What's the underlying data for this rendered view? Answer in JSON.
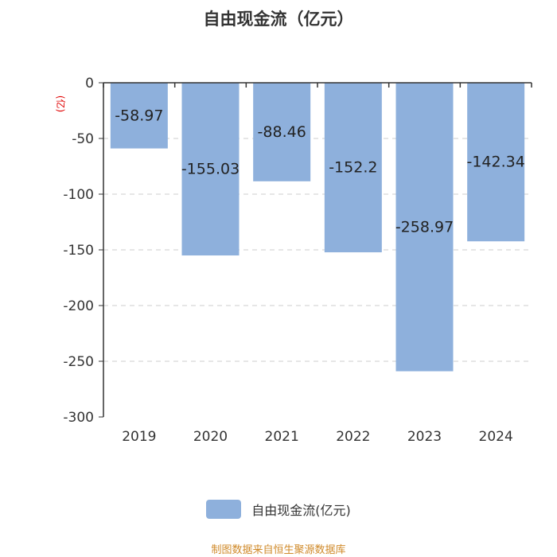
{
  "title": "自由现金流（亿元）",
  "unit_label": "(亿)",
  "source": "制图数据来自恒生聚源数据库",
  "colors": {
    "bar": "#8eb0dc",
    "axis": "#333333",
    "grid": "#cccccc",
    "unit": "#e00000",
    "source": "#d08a2a"
  },
  "chart_data": {
    "type": "bar",
    "categories": [
      "2019",
      "2020",
      "2021",
      "2022",
      "2023",
      "2024"
    ],
    "series": [
      {
        "name": "自由现金流(亿元)",
        "values": [
          -58.97,
          -155.03,
          -88.46,
          -152.2,
          -258.97,
          -142.34
        ]
      }
    ],
    "data_labels": [
      "-58.97",
      "-155.03",
      "-88.46",
      "-152.2",
      "-258.97",
      "-142.34"
    ],
    "yticks": [
      "0",
      "-50",
      "-100",
      "-150",
      "-200",
      "-250",
      "-300"
    ],
    "ylim": [
      -300,
      0
    ],
    "grid": true,
    "legend_position": "bottom"
  }
}
